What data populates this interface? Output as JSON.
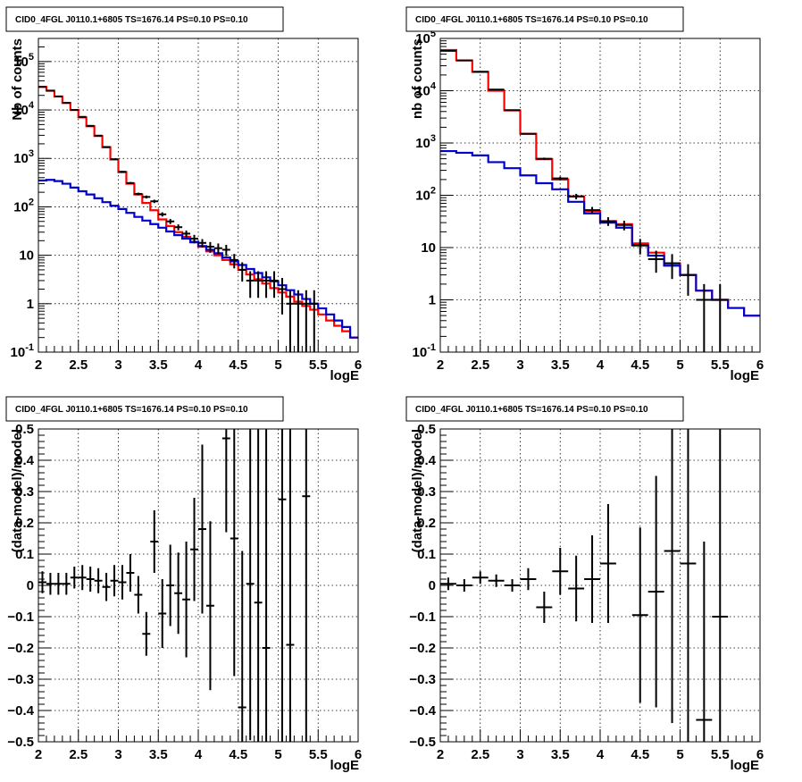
{
  "chart_data": [
    {
      "type": "line",
      "title": "CID0_4FGL J0110.1+6805 TS=1676.14 PS=0.10 PS=0.10",
      "xlabel": "logE",
      "ylabel": "Nb of counts",
      "xlim": [
        2,
        6
      ],
      "ylim": [
        0.1,
        300000
      ],
      "yscale": "log",
      "grid": true,
      "xticks": [
        "2",
        "2.5",
        "3",
        "3.5",
        "4",
        "4.5",
        "5",
        "5.5",
        "6"
      ],
      "yticks": [
        {
          "v": 0.1,
          "label": "10^-1"
        },
        {
          "v": 1,
          "label": "1"
        },
        {
          "v": 10,
          "label": "10"
        },
        {
          "v": 100,
          "label": "10^2"
        },
        {
          "v": 1000,
          "label": "10^3"
        },
        {
          "v": 10000,
          "label": "10^4"
        },
        {
          "v": 100000,
          "label": "10^5"
        }
      ],
      "series": [
        {
          "color": "#ff0000",
          "kind": "step",
          "x0": 2,
          "dx": 0.1,
          "values": [
            30000,
            25000,
            19000,
            14000,
            10000,
            7000,
            4600,
            2900,
            1700,
            950,
            520,
            300,
            180,
            120,
            85,
            55,
            40,
            30,
            24,
            19,
            15,
            12,
            10,
            8,
            6.5,
            5,
            4,
            3.2,
            2.6,
            2.1,
            1.7,
            1.4,
            1.1,
            0.9,
            0.75,
            0.6,
            0.45,
            0.35,
            0.27,
            0.2
          ]
        },
        {
          "color": "#0000cc",
          "kind": "step",
          "x0": 2,
          "dx": 0.1,
          "values": [
            350,
            360,
            340,
            300,
            250,
            210,
            180,
            150,
            125,
            105,
            90,
            75,
            62,
            52,
            44,
            37,
            31,
            26,
            22,
            18.5,
            15.5,
            13,
            11,
            9,
            7.5,
            6.3,
            5.2,
            4.3,
            3.5,
            2.9,
            2.4,
            1.9,
            1.55,
            1.25,
            1.0,
            0.8,
            0.6,
            0.45,
            0.33,
            0.2
          ]
        },
        {
          "color": "#000000",
          "kind": "points",
          "xerr": 0.05,
          "points": [
            [
              2.05,
              30000,
              0.03
            ],
            [
              2.15,
              25000,
              0.03
            ],
            [
              2.25,
              19000,
              0.03
            ],
            [
              2.35,
              14000,
              0.03
            ],
            [
              2.45,
              10000,
              0.03
            ],
            [
              2.55,
              7200,
              0.03
            ],
            [
              2.65,
              4700,
              0.03
            ],
            [
              2.75,
              2950,
              0.03
            ],
            [
              2.85,
              1720,
              0.03
            ],
            [
              2.95,
              960,
              0.03
            ],
            [
              3.05,
              530,
              0.04
            ],
            [
              3.15,
              310,
              0.05
            ],
            [
              3.25,
              185,
              0.06
            ],
            [
              3.35,
              160,
              0.07
            ],
            [
              3.45,
              130,
              0.08
            ],
            [
              3.55,
              70,
              0.1
            ],
            [
              3.65,
              50,
              0.12
            ],
            [
              3.75,
              38,
              0.14
            ],
            [
              3.85,
              28,
              0.16
            ],
            [
              3.95,
              22,
              0.2
            ],
            [
              4.05,
              18,
              0.2
            ],
            [
              4.15,
              15,
              0.25
            ],
            [
              4.25,
              14,
              0.25
            ],
            [
              4.35,
              13,
              0.26
            ],
            [
              4.45,
              8,
              0.33
            ],
            [
              4.55,
              5,
              0.43
            ],
            [
              4.65,
              3,
              0.56
            ],
            [
              4.75,
              3,
              0.56
            ],
            [
              4.85,
              3,
              0.56
            ],
            [
              4.95,
              3,
              0.56
            ],
            [
              5.05,
              2,
              0.7
            ],
            [
              5.15,
              1,
              0.9
            ],
            [
              5.25,
              1,
              0.9
            ],
            [
              5.35,
              1,
              0.9
            ],
            [
              5.45,
              1,
              0.9
            ]
          ]
        }
      ]
    },
    {
      "type": "line",
      "title": "CID0_4FGL J0110.1+6805 TS=1676.14 PS=0.10 PS=0.10",
      "xlabel": "logE",
      "ylabel": "nb of counts",
      "xlim": [
        2,
        6
      ],
      "ylim": [
        0.1,
        100000
      ],
      "yscale": "log",
      "grid": true,
      "xticks": [
        "2",
        "2.5",
        "3",
        "3.5",
        "4",
        "4.5",
        "5",
        "5.5",
        "6"
      ],
      "yticks": [
        {
          "v": 0.1,
          "label": "10^-1"
        },
        {
          "v": 1,
          "label": "1"
        },
        {
          "v": 10,
          "label": "10"
        },
        {
          "v": 100,
          "label": "10^2"
        },
        {
          "v": 1000,
          "label": "10^3"
        },
        {
          "v": 10000,
          "label": "10^4"
        },
        {
          "v": 100000,
          "label": "10^5"
        }
      ],
      "series": [
        {
          "color": "#ff0000",
          "kind": "step",
          "x0": 2,
          "dx": 0.2,
          "values": [
            60000,
            38000,
            23000,
            10000,
            4200,
            1500,
            490,
            200,
            95,
            50,
            32,
            28,
            12,
            8,
            5,
            3,
            1.5,
            1.0,
            0.7,
            0.5
          ]
        },
        {
          "color": "#0000cc",
          "kind": "step",
          "x0": 2,
          "dx": 0.2,
          "values": [
            700,
            650,
            580,
            430,
            330,
            240,
            170,
            130,
            75,
            45,
            30,
            24,
            11,
            7,
            4.5,
            3,
            1.5,
            1.0,
            0.7,
            0.5
          ]
        },
        {
          "color": "#000000",
          "kind": "points",
          "xerr": 0.1,
          "points": [
            [
              2.1,
              58000,
              0.01
            ],
            [
              2.3,
              38000,
              0.01
            ],
            [
              2.5,
              23000,
              0.01
            ],
            [
              2.7,
              10500,
              0.01
            ],
            [
              2.9,
              4250,
              0.02
            ],
            [
              3.1,
              1500,
              0.03
            ],
            [
              3.3,
              500,
              0.05
            ],
            [
              3.5,
              210,
              0.08
            ],
            [
              3.7,
              95,
              0.12
            ],
            [
              3.9,
              52,
              0.15
            ],
            [
              4.1,
              32,
              0.19
            ],
            [
              4.3,
              27,
              0.21
            ],
            [
              4.5,
              11,
              0.33
            ],
            [
              4.7,
              6,
              0.45
            ],
            [
              4.9,
              5,
              0.5
            ],
            [
              5.1,
              3,
              0.6
            ],
            [
              5.3,
              1,
              1.0
            ],
            [
              5.5,
              1,
              1.0
            ]
          ]
        }
      ]
    },
    {
      "type": "scatter",
      "title": "CID0_4FGL J0110.1+6805 TS=1676.14 PS=0.10 PS=0.10",
      "xlabel": "logE",
      "ylabel": "(data-model)/model",
      "xlim": [
        2,
        6
      ],
      "ylim": [
        -0.5,
        0.5
      ],
      "grid": true,
      "xticks": [
        "2",
        "2.5",
        "3",
        "3.5",
        "4",
        "4.5",
        "5",
        "5.5",
        "6"
      ],
      "yticks": [
        "-0.5",
        "-0.4",
        "-0.3",
        "-0.2",
        "-0.1",
        "0",
        "0.1",
        "0.2",
        "0.3",
        "0.4",
        "0.5"
      ],
      "xerr": 0.05,
      "points": [
        [
          2.05,
          0.01,
          0.035
        ],
        [
          2.15,
          0.005,
          0.035
        ],
        [
          2.25,
          0.005,
          0.035
        ],
        [
          2.35,
          0.005,
          0.035
        ],
        [
          2.45,
          0.025,
          0.035
        ],
        [
          2.55,
          0.025,
          0.04
        ],
        [
          2.65,
          0.02,
          0.04
        ],
        [
          2.75,
          0.015,
          0.04
        ],
        [
          2.85,
          -0.005,
          0.045
        ],
        [
          2.95,
          0.015,
          0.05
        ],
        [
          3.05,
          0.01,
          0.055
        ],
        [
          3.15,
          0.04,
          0.06
        ],
        [
          3.25,
          -0.03,
          0.06
        ],
        [
          3.35,
          -0.155,
          0.07
        ],
        [
          3.45,
          0.14,
          0.1
        ],
        [
          3.55,
          -0.09,
          0.11
        ],
        [
          3.65,
          0.0,
          0.13
        ],
        [
          3.75,
          -0.025,
          0.13
        ],
        [
          3.85,
          -0.045,
          0.185
        ],
        [
          3.95,
          0.115,
          0.165
        ],
        [
          4.05,
          0.18,
          0.27
        ],
        [
          4.15,
          -0.065,
          0.27
        ],
        [
          4.35,
          0.47,
          0.3
        ],
        [
          4.45,
          0.15,
          0.44
        ],
        [
          4.55,
          -0.39,
          0.5
        ],
        [
          4.65,
          0.005,
          0.5
        ],
        [
          4.75,
          -0.055,
          0.6
        ],
        [
          4.85,
          -0.2,
          0.7
        ],
        [
          5.05,
          0.275,
          0.8
        ],
        [
          5.15,
          -0.19,
          0.8
        ],
        [
          5.35,
          0.285,
          0.9
        ]
      ]
    },
    {
      "type": "scatter",
      "title": "CID0_4FGL J0110.1+6805 TS=1676.14 PS=0.10 PS=0.10",
      "xlabel": "logE",
      "ylabel": "(data-model)/model",
      "xlim": [
        2,
        6
      ],
      "ylim": [
        -0.5,
        0.5
      ],
      "grid": true,
      "xticks": [
        "2",
        "2.5",
        "3",
        "3.5",
        "4",
        "4.5",
        "5",
        "5.5",
        "6"
      ],
      "yticks": [
        "-0.5",
        "-0.4",
        "-0.3",
        "-0.2",
        "-0.1",
        "0",
        "0.1",
        "0.2",
        "0.3",
        "0.4",
        "0.5"
      ],
      "xerr": 0.1,
      "points": [
        [
          2.1,
          0.005,
          0.02
        ],
        [
          2.3,
          0.0,
          0.02
        ],
        [
          2.5,
          0.025,
          0.02
        ],
        [
          2.7,
          0.015,
          0.02
        ],
        [
          2.9,
          0.0,
          0.02
        ],
        [
          3.1,
          0.02,
          0.035
        ],
        [
          3.3,
          -0.07,
          0.05
        ],
        [
          3.5,
          0.045,
          0.075
        ],
        [
          3.7,
          -0.01,
          0.105
        ],
        [
          3.9,
          0.02,
          0.14
        ],
        [
          4.1,
          0.07,
          0.19
        ],
        [
          4.5,
          -0.095,
          0.28
        ],
        [
          4.7,
          -0.02,
          0.37
        ],
        [
          4.9,
          0.11,
          0.55
        ],
        [
          5.1,
          0.07,
          0.6
        ],
        [
          5.3,
          -0.43,
          0.57
        ],
        [
          5.5,
          -0.1,
          0.9
        ]
      ]
    }
  ]
}
